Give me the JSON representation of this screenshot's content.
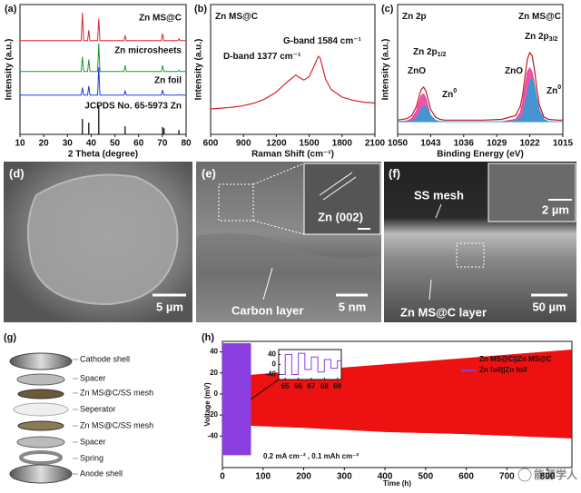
{
  "chart_data": [
    {
      "type": "line",
      "panel": "(a)",
      "xlabel": "2 Theta (degree)",
      "ylabel": "Intensity (a.u.)",
      "xlim": [
        10,
        80
      ],
      "xticks": [
        10,
        20,
        30,
        40,
        50,
        60,
        70,
        80
      ],
      "x": [
        10,
        35.8,
        36.3,
        36.8,
        38.5,
        39,
        39.5,
        42.7,
        43.2,
        43.7,
        53.8,
        54.3,
        54.8,
        69.6,
        70.1,
        70.6,
        76.5,
        77,
        77.5,
        80
      ],
      "series": [
        {
          "name": "Zn MS@C",
          "color": "#e0262b",
          "values": [
            4,
            4,
            100,
            4,
            4,
            40,
            4,
            4,
            80,
            4,
            4,
            22,
            4,
            4,
            28,
            4,
            4,
            10,
            4,
            4
          ]
        },
        {
          "name": "Zn microsheets",
          "color": "#1f9a2f",
          "values": [
            4,
            4,
            55,
            4,
            4,
            45,
            4,
            4,
            100,
            4,
            4,
            25,
            4,
            4,
            25,
            4,
            4,
            8,
            4,
            4
          ]
        },
        {
          "name": "Zn foil",
          "color": "#1f3bdc",
          "values": [
            4,
            4,
            30,
            4,
            4,
            35,
            4,
            4,
            100,
            4,
            4,
            18,
            4,
            4,
            22,
            4,
            4,
            6,
            4,
            4
          ]
        },
        {
          "name": "JCPDS No. 65-5973 Zn",
          "color": "#111111",
          "style": "stick",
          "x": [
            36.3,
            39.0,
            43.2,
            54.3,
            70.1,
            70.7,
            77.0
          ],
          "values": [
            53,
            40,
            100,
            28,
            25,
            21,
            15
          ]
        }
      ]
    },
    {
      "type": "line",
      "panel": "(b)",
      "xlabel": "Raman Shift (cm⁻¹)",
      "ylabel": "Intensity (a.u.)",
      "xlim": [
        600,
        2100
      ],
      "xticks": [
        600,
        900,
        1200,
        1500,
        1800,
        2100
      ],
      "annotations": [
        {
          "text": "Zn MS@C"
        },
        {
          "text": "D-band 1377 cm⁻¹"
        },
        {
          "text": "G-band 1584 cm⁻¹"
        }
      ],
      "x": [
        600,
        700,
        800,
        900,
        1000,
        1100,
        1200,
        1250,
        1300,
        1350,
        1377,
        1400,
        1450,
        1500,
        1550,
        1584,
        1600,
        1620,
        1650,
        1700,
        1800,
        1900,
        2000,
        2100
      ],
      "series": [
        {
          "color": "#d8242a",
          "values": [
            10,
            11,
            12,
            14,
            17,
            22,
            30,
            36,
            42,
            47,
            50,
            48,
            44,
            48,
            62,
            72,
            70,
            60,
            45,
            33,
            24,
            20,
            18,
            17
          ]
        }
      ]
    },
    {
      "type": "line",
      "panel": "(c)",
      "xlabel": "Binding Energy (eV)",
      "ylabel": "Intensity (a.u.)",
      "xlim": [
        1050,
        1015
      ],
      "xticks": [
        1050,
        1043,
        1036,
        1029,
        1022,
        1015
      ],
      "annotations": [
        {
          "text": "Zn 2p"
        },
        {
          "text": "Zn MS@C"
        },
        {
          "text": "Zn 2p",
          "sub": "1/2"
        },
        {
          "text": "ZnO"
        },
        {
          "text": "Zn",
          "sup": "0"
        },
        {
          "text": "Zn 2p",
          "sub": "3/2"
        },
        {
          "text": "ZnO"
        },
        {
          "text": "Zn",
          "sup": "0"
        }
      ],
      "x": [
        1050,
        1048,
        1047,
        1046,
        1045.5,
        1045,
        1044.5,
        1044,
        1043.5,
        1043,
        1042,
        1041,
        1040,
        1038,
        1036,
        1032,
        1028,
        1025,
        1024,
        1023.5,
        1023,
        1022.5,
        1022,
        1021.5,
        1021,
        1020.5,
        1020,
        1019,
        1018,
        1016,
        1015
      ],
      "series": [
        {
          "color": "#e6399b",
          "fill": true,
          "values": [
            10,
            11,
            14,
            24,
            35,
            44,
            46,
            40,
            28,
            17,
            11,
            10,
            10,
            10,
            10,
            10,
            10,
            13,
            22,
            35,
            56,
            75,
            80,
            74,
            58,
            38,
            22,
            12,
            10,
            10,
            10
          ]
        },
        {
          "color": "#2a9fd8",
          "fill": true,
          "values": [
            10,
            10,
            11,
            14,
            20,
            26,
            30,
            30,
            25,
            18,
            12,
            10,
            10,
            10,
            10,
            10,
            10,
            11,
            14,
            20,
            32,
            48,
            62,
            66,
            56,
            40,
            26,
            13,
            10,
            10,
            10
          ]
        },
        {
          "color": "#c0181c",
          "values": [
            12,
            14,
            18,
            30,
            42,
            52,
            55,
            50,
            38,
            26,
            16,
            13,
            12,
            12,
            12,
            12,
            13,
            18,
            30,
            45,
            70,
            92,
            100,
            96,
            78,
            52,
            32,
            16,
            13,
            12,
            12
          ]
        }
      ]
    },
    {
      "type": "band",
      "panel": "(h)",
      "xlabel": "Time (h)",
      "ylabel": "Voltage (mV)",
      "xlim": [
        0,
        860
      ],
      "xticks": [
        0,
        100,
        200,
        300,
        400,
        500,
        600,
        700,
        800
      ],
      "ylim": [
        -70,
        50
      ],
      "yticks": [
        -40,
        -20,
        0,
        20,
        40
      ],
      "legend": "upper right",
      "annotations": [
        {
          "text": "0.2 mA cm⁻² , 0.1 mAh cm⁻²"
        }
      ],
      "series": [
        {
          "name": "Zn MS@C||Zn MS@C",
          "color": "#ee1111",
          "x": [
            70,
            200,
            400,
            600,
            858
          ],
          "high": [
            18,
            22,
            28,
            34,
            42
          ],
          "low": [
            -30,
            -32,
            -36,
            -38,
            -42
          ]
        },
        {
          "name": "Zn foil||Zn foil",
          "color": "#8a3ee0",
          "x": [
            0,
            70
          ],
          "high": [
            48,
            48
          ],
          "low": [
            -58,
            -58
          ]
        }
      ],
      "inset": {
        "xlim": [
          64.5,
          69.3
        ],
        "xticks": [
          65,
          66,
          67,
          68,
          69
        ],
        "ylim": [
          -60,
          60
        ],
        "yticks": [
          40,
          0,
          -40
        ],
        "x": [
          64.6,
          65,
          65,
          65.5,
          65.5,
          66,
          66,
          66.5,
          66.5,
          67,
          67,
          67.5,
          67.5,
          68,
          68,
          68.5,
          68.5,
          69,
          69,
          69.3
        ],
        "series": [
          {
            "color": "#8a3ee0",
            "values": [
              -40,
              -40,
              40,
              40,
              -40,
              -40,
              45,
              45,
              -20,
              -20,
              30,
              30,
              -30,
              -30,
              20,
              20,
              -15,
              -15,
              15,
              15
            ]
          }
        ]
      }
    }
  ],
  "images": {
    "d": {
      "label": "(d)",
      "scale": "5 µm"
    },
    "e": {
      "label": "(e)",
      "inset_label": "Zn (002)",
      "annotation": "Carbon layer",
      "scale": "5 nm"
    },
    "f": {
      "label": "(f)",
      "annotation_top": "SS mesh",
      "inset_scale": "2 µm",
      "annotation_bottom": "Zn MS@C layer",
      "scale": "50 µm"
    }
  },
  "schematic": {
    "label": "(g)",
    "components": [
      "Cathode shell",
      "Spacer",
      "Zn MS@C/SS mesh",
      "Seperator",
      "Zn MS@C/SS mesh",
      "Spacer",
      "Spring",
      "Anode shell"
    ]
  },
  "watermark": "能源学人"
}
